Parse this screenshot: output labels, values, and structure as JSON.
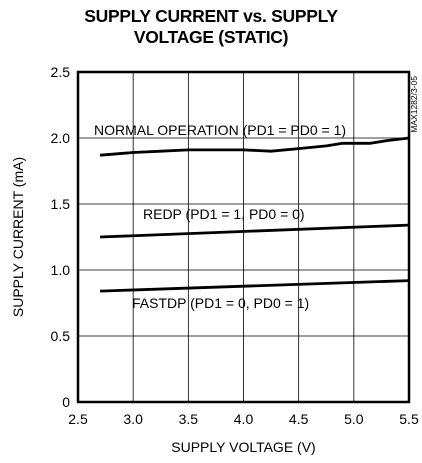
{
  "chart_data": {
    "type": "line",
    "title_lines": [
      "SUPPLY CURRENT vs. SUPPLY",
      "VOLTAGE (STATIC)"
    ],
    "xlabel": "SUPPLY VOLTAGE (V)",
    "ylabel": "SUPPLY CURRENT (mA)",
    "xlim": [
      2.5,
      5.5
    ],
    "ylim": [
      0,
      2.5
    ],
    "xticks": [
      2.5,
      3.0,
      3.5,
      4.0,
      4.5,
      5.0,
      5.5
    ],
    "xtick_labels": [
      "2.5",
      "3.0",
      "3.5",
      "4.0",
      "4.5",
      "5.0",
      "5.5"
    ],
    "yticks": [
      0,
      0.5,
      1.0,
      1.5,
      2.0,
      2.5
    ],
    "ytick_labels": [
      "0",
      "0.5",
      "1.0",
      "1.5",
      "2.0",
      "2.5"
    ],
    "grid": true,
    "code_label": "MAX1282/3-05",
    "series": [
      {
        "label": "NORMAL OPERATION (PD1 = PD0 = 1)",
        "x": [
          2.7,
          3.0,
          3.25,
          3.5,
          3.75,
          4.0,
          4.25,
          4.5,
          4.75,
          4.9,
          5.0,
          5.15,
          5.3,
          5.5
        ],
        "y": [
          1.87,
          1.89,
          1.9,
          1.91,
          1.91,
          1.91,
          1.9,
          1.92,
          1.94,
          1.96,
          1.96,
          1.96,
          1.98,
          2.0
        ]
      },
      {
        "label": "REDP (PD1 = 1, PD0 = 0)",
        "x": [
          2.7,
          5.5
        ],
        "y": [
          1.25,
          1.34
        ]
      },
      {
        "label": "FASTDP (PD1 = 0, PD0 = 1)",
        "x": [
          2.7,
          5.5
        ],
        "y": [
          0.84,
          0.92
        ]
      }
    ]
  }
}
